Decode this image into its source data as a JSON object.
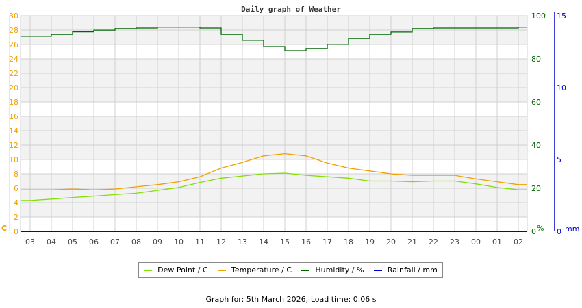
{
  "title": "Daily graph of Weather",
  "footer": "Graph for: 5th March 2026; Load time: 0.06 s",
  "colors": {
    "dew_point": "#80e000",
    "temperature": "#f0a000",
    "humidity": "#006400",
    "rainfall": "#0000cc",
    "grid": "#d0d0d0",
    "band": "#f2f2f2"
  },
  "legend": [
    {
      "label": "Dew Point / C",
      "color": "#80e000"
    },
    {
      "label": "Temperature / C",
      "color": "#f0a000"
    },
    {
      "label": "Humidity / %",
      "color": "#006400"
    },
    {
      "label": "Rainfall / mm",
      "color": "#0000cc"
    }
  ],
  "axes": {
    "left": {
      "unit": "C",
      "ticks": [
        0,
        2,
        4,
        6,
        8,
        10,
        12,
        14,
        16,
        18,
        20,
        22,
        24,
        26,
        28,
        30
      ],
      "range": [
        0,
        30
      ]
    },
    "humidity": {
      "unit": "%",
      "ticks": [
        0,
        20,
        40,
        60,
        80,
        100
      ],
      "range": [
        0,
        100
      ]
    },
    "rainfall": {
      "unit": "mm",
      "ticks": [
        0,
        5,
        10,
        15
      ],
      "range": [
        0,
        15
      ]
    }
  },
  "chart_data": {
    "type": "line",
    "title": "Daily graph of Weather",
    "xlabel": "",
    "ylabel": "C",
    "ylim": [
      0,
      30
    ],
    "y2label": "%",
    "y2lim": [
      0,
      100
    ],
    "y3label": "mm",
    "y3lim": [
      0,
      15
    ],
    "grid": true,
    "legend_position": "bottom",
    "categories": [
      "03",
      "04",
      "05",
      "06",
      "07",
      "08",
      "09",
      "10",
      "11",
      "12",
      "13",
      "14",
      "15",
      "16",
      "17",
      "18",
      "19",
      "20",
      "21",
      "22",
      "23",
      "00",
      "01",
      "02"
    ],
    "series": [
      {
        "name": "Dew Point / C",
        "axis": "left",
        "values": [
          4.3,
          4.5,
          4.7,
          4.9,
          5.1,
          5.3,
          5.7,
          6.1,
          6.8,
          7.4,
          7.7,
          8.0,
          8.1,
          7.8,
          7.6,
          7.4,
          7.0,
          7.0,
          6.9,
          7.0,
          7.0,
          6.6,
          6.1,
          5.8
        ]
      },
      {
        "name": "Temperature / C",
        "axis": "left",
        "values": [
          5.8,
          5.8,
          5.9,
          5.8,
          5.9,
          6.2,
          6.5,
          6.9,
          7.6,
          8.8,
          9.6,
          10.5,
          10.8,
          10.5,
          9.5,
          8.8,
          8.4,
          8.0,
          7.8,
          7.8,
          7.8,
          7.3,
          6.9,
          6.5
        ]
      },
      {
        "name": "Humidity / %",
        "axis": "humidity",
        "values": [
          90.5,
          91.4,
          92.5,
          93.3,
          94.0,
          94.3,
          94.7,
          94.7,
          94.3,
          91.4,
          88.6,
          85.7,
          83.8,
          84.8,
          86.7,
          89.5,
          91.4,
          92.4,
          94.0,
          94.3,
          94.3,
          94.3,
          94.3,
          94.7
        ]
      },
      {
        "name": "Rainfall / mm",
        "axis": "rainfall",
        "values": [
          0,
          0,
          0,
          0,
          0,
          0,
          0,
          0,
          0,
          0,
          0,
          0,
          0,
          0,
          0,
          0,
          0,
          0,
          0,
          0,
          0,
          0,
          0,
          0
        ]
      }
    ]
  }
}
